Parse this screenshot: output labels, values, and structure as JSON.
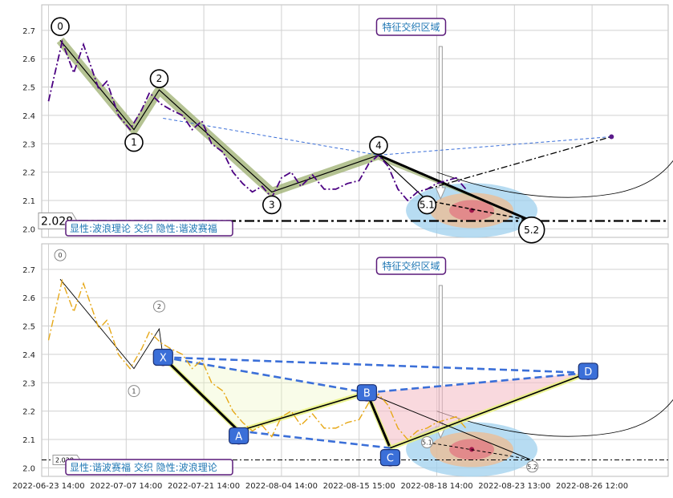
{
  "chart_data": [
    {
      "type": "line",
      "panel": "top",
      "annotation_title": "特征交织区域",
      "caption": "显性:波浪理论 交织 隐性:谐波赛福",
      "price_marker_label": "2.028",
      "price_level": 2.028,
      "ylim": [
        1.97,
        2.79
      ],
      "yticks": [
        "2.0",
        "2.1",
        "2.2",
        "2.3",
        "2.4",
        "2.5",
        "2.6",
        "2.7"
      ],
      "grid": true,
      "price_series": [
        {
          "t": 0.0,
          "v": 2.45
        },
        {
          "t": 0.7,
          "v": 2.66
        },
        {
          "t": 1.3,
          "v": 2.55
        },
        {
          "t": 1.8,
          "v": 2.65
        },
        {
          "t": 2.6,
          "v": 2.49
        },
        {
          "t": 3.0,
          "v": 2.52
        },
        {
          "t": 3.6,
          "v": 2.4
        },
        {
          "t": 4.2,
          "v": 2.35
        },
        {
          "t": 4.8,
          "v": 2.42
        },
        {
          "t": 5.2,
          "v": 2.48
        },
        {
          "t": 5.8,
          "v": 2.44
        },
        {
          "t": 6.3,
          "v": 2.42
        },
        {
          "t": 6.9,
          "v": 2.4
        },
        {
          "t": 7.4,
          "v": 2.35
        },
        {
          "t": 7.9,
          "v": 2.38
        },
        {
          "t": 8.4,
          "v": 2.3
        },
        {
          "t": 9.0,
          "v": 2.27
        },
        {
          "t": 9.5,
          "v": 2.2
        },
        {
          "t": 10.0,
          "v": 2.16
        },
        {
          "t": 10.5,
          "v": 2.13
        },
        {
          "t": 11.0,
          "v": 2.15
        },
        {
          "t": 11.5,
          "v": 2.11
        },
        {
          "t": 12.0,
          "v": 2.18
        },
        {
          "t": 12.5,
          "v": 2.2
        },
        {
          "t": 13.0,
          "v": 2.15
        },
        {
          "t": 13.6,
          "v": 2.19
        },
        {
          "t": 14.2,
          "v": 2.14
        },
        {
          "t": 14.8,
          "v": 2.14
        },
        {
          "t": 15.4,
          "v": 2.16
        },
        {
          "t": 16.0,
          "v": 2.17
        },
        {
          "t": 16.5,
          "v": 2.23
        },
        {
          "t": 17.0,
          "v": 2.26
        },
        {
          "t": 17.5,
          "v": 2.22
        },
        {
          "t": 18.0,
          "v": 2.14
        },
        {
          "t": 18.5,
          "v": 2.1
        },
        {
          "t": 19.0,
          "v": 2.13
        },
        {
          "t": 19.5,
          "v": 2.14
        },
        {
          "t": 20.0,
          "v": 2.16
        },
        {
          "t": 20.5,
          "v": 2.17
        },
        {
          "t": 21.0,
          "v": 2.18
        },
        {
          "t": 21.5,
          "v": 2.14
        }
      ],
      "waves": [
        {
          "label": "0",
          "t": 0.6,
          "v": 2.665
        },
        {
          "label": "1",
          "t": 4.4,
          "v": 2.35
        },
        {
          "label": "2",
          "t": 5.7,
          "v": 2.49
        },
        {
          "label": "3",
          "t": 11.5,
          "v": 2.13
        },
        {
          "label": "4",
          "t": 17.0,
          "v": 2.26
        },
        {
          "label": "5.1",
          "t": 19.5,
          "v": 2.09
        },
        {
          "label": "5.2",
          "t": 24.8,
          "v": 2.03
        }
      ],
      "projection_point": {
        "t": 29.0,
        "v": 2.325
      }
    },
    {
      "type": "line",
      "panel": "bottom",
      "annotation_title": "特征交织区域",
      "caption": "显性:谐波赛福 交织 隐性:波浪理论",
      "price_marker_label": "2.028",
      "price_level": 2.028,
      "ylim": [
        1.97,
        2.79
      ],
      "yticks": [
        "2.0",
        "2.1",
        "2.2",
        "2.3",
        "2.4",
        "2.5",
        "2.6",
        "2.7"
      ],
      "grid": true,
      "harmonic_points": [
        {
          "label": "X",
          "t": 5.9,
          "v": 2.39
        },
        {
          "label": "A",
          "t": 9.8,
          "v": 2.13
        },
        {
          "label": "B",
          "t": 16.4,
          "v": 2.265
        },
        {
          "label": "C",
          "t": 17.6,
          "v": 2.07
        },
        {
          "label": "D",
          "t": 27.8,
          "v": 2.335
        }
      ],
      "waves": [
        {
          "label": "0",
          "t": 0.6,
          "v": 2.665
        },
        {
          "label": "1",
          "t": 4.4,
          "v": 2.35
        },
        {
          "label": "2",
          "t": 5.7,
          "v": 2.49
        },
        {
          "label": "5.1",
          "t": 19.5,
          "v": 2.09
        },
        {
          "label": "5.2",
          "t": 24.8,
          "v": 2.03
        }
      ]
    }
  ],
  "x_axis": {
    "tick_labels": [
      "2022-06-23 14:00",
      "2022-07-07 14:00",
      "2022-07-21 14:00",
      "2022-08-04 14:00",
      "2022-08-15 15:00",
      "2022-08-18 14:00",
      "2022-08-23 13:00",
      "2022-08-26 12:00"
    ]
  },
  "colors": {
    "price_top": "#4b0082",
    "price_bottom": "#e6a817",
    "wave_band": "#9caf6f",
    "harmonic_box": "#3b6fd8",
    "caption_border": "#5a1a7a",
    "title_text": "#1f77b4",
    "zone_blue": "#9fd0ee",
    "zone_orange": "#f2b98a",
    "zone_red": "#e35b73"
  }
}
